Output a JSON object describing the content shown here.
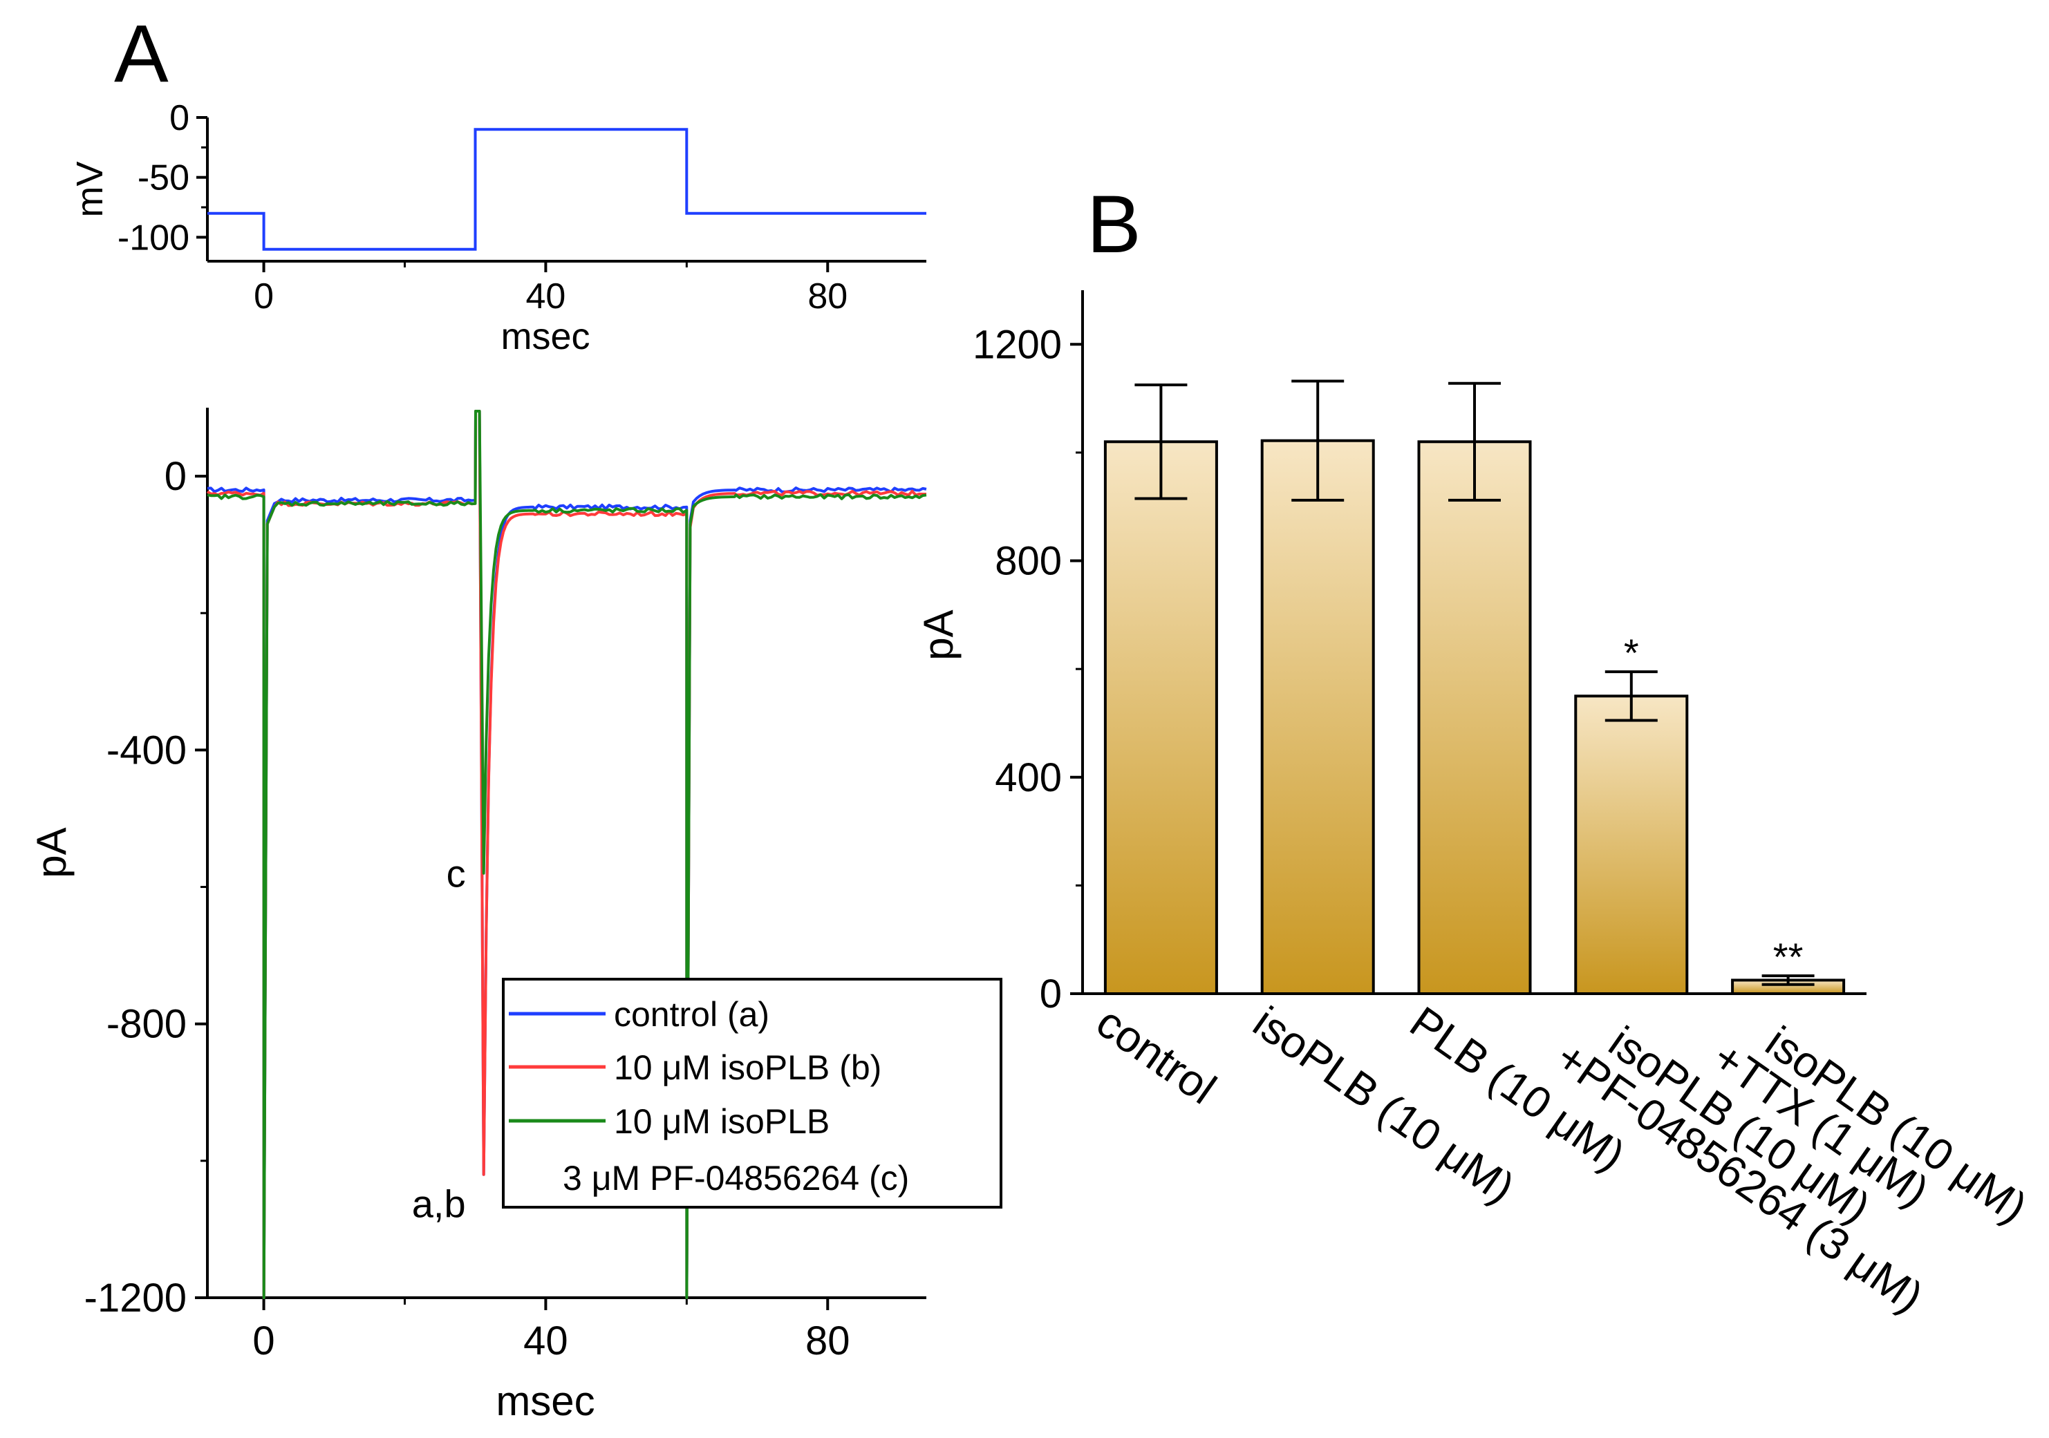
{
  "panels": {
    "a_label": "A",
    "b_label": "B"
  },
  "chart_data": [
    {
      "id": "voltage_protocol",
      "type": "line",
      "xlabel": "msec",
      "ylabel": "mV",
      "xlim": [
        -8,
        94
      ],
      "ylim": [
        -120,
        0
      ],
      "xticks": [
        0,
        40,
        80
      ],
      "yticks": [
        0,
        -50,
        -100
      ],
      "grid": false,
      "series": [
        {
          "color": "#1f3fff",
          "points": [
            [
              -8,
              -80
            ],
            [
              0,
              -80
            ],
            [
              0,
              -110
            ],
            [
              30,
              -110
            ],
            [
              30,
              -10
            ],
            [
              60,
              -10
            ],
            [
              60,
              -80
            ],
            [
              94,
              -80
            ]
          ]
        }
      ]
    },
    {
      "id": "current_traces",
      "type": "line",
      "xlabel": "msec",
      "ylabel": "pA",
      "xlim": [
        -8,
        94
      ],
      "ylim": [
        -1200,
        100
      ],
      "xticks": [
        0,
        40,
        80
      ],
      "yticks": [
        0,
        -400,
        -800,
        -1200
      ],
      "grid": false,
      "legend": {
        "position": "bottom-right",
        "entries": [
          "control (a)",
          "10 μM isoPLB (b)",
          "10 μM isoPLB",
          "3 μM PF-04856264 (c)"
        ]
      },
      "annotations": [
        "c",
        "a,b"
      ],
      "series": [
        {
          "name": "control (a)",
          "color": "#1f3fff",
          "baseline_start": -20,
          "hyperpol_level": -35,
          "step_peak": -1020,
          "step_plateau": -45,
          "end_level": -20,
          "off_dip": -1200
        },
        {
          "name": "10 μM isoPLB (b)",
          "color": "#ff3b3b",
          "baseline_start": -25,
          "hyperpol_level": -40,
          "step_peak": -1020,
          "step_plateau": -55,
          "end_level": -25,
          "off_dip": -1200
        },
        {
          "name": "10 μM isoPLB + 3 μM PF-04856264 (c)",
          "color": "#1a8a1a",
          "baseline_start": -30,
          "hyperpol_level": -40,
          "step_peak": -580,
          "step_plateau": -50,
          "end_level": -30,
          "off_dip": -1200
        }
      ]
    },
    {
      "id": "bar_summary",
      "type": "bar",
      "ylabel": "pA",
      "ylim": [
        0,
        1300
      ],
      "yticks": [
        0,
        400,
        800,
        1200
      ],
      "grid": false,
      "categories": [
        [
          "control"
        ],
        [
          "isoPLB (10 μM)"
        ],
        [
          "PLB (10 μM)"
        ],
        [
          "isoPLB (10 μM)",
          "+PF-04856264 (3 μM)"
        ],
        [
          "isoPLB (10 μM)",
          "+TTX (1 μM)"
        ]
      ],
      "values": [
        1020,
        1022,
        1020,
        550,
        25
      ],
      "errors": [
        105,
        110,
        108,
        45,
        8
      ],
      "significance": [
        "",
        "",
        "",
        "*",
        "**"
      ],
      "colors": {
        "bar_top": "#f7e6c4",
        "bar_bottom": "#c8961f",
        "outline": "#000000"
      }
    }
  ]
}
